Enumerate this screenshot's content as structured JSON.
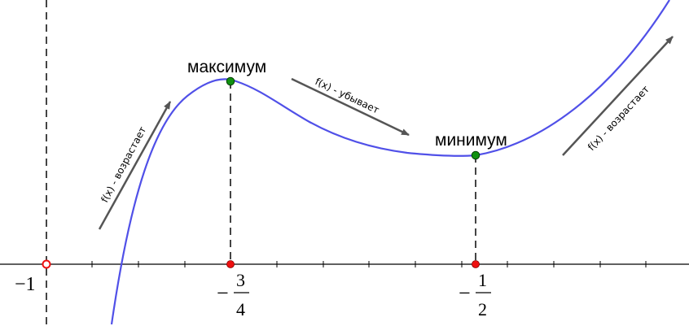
{
  "labels": {
    "maximum": "максимум",
    "minimum": "минимум",
    "increasing_left": "f(x) - возрастает",
    "decreasing": "f(x) - убывает",
    "increasing_right": "f(x) - возрастает"
  },
  "ticks": {
    "minus_one": {
      "text": "−1",
      "value": -1
    },
    "minus_three_quarters": {
      "sign": "−",
      "num": "3",
      "den": "4",
      "value": -0.75
    },
    "minus_half": {
      "sign": "−",
      "num": "1",
      "den": "2",
      "value": -0.5
    }
  },
  "colors": {
    "curve": "#5050e8",
    "extremum_point": "#109010",
    "axis_point": "#ee1010",
    "asymptote_point": "#ee1010",
    "guide": "#444444",
    "arrow": "#555555",
    "axis": "#000000"
  }
}
